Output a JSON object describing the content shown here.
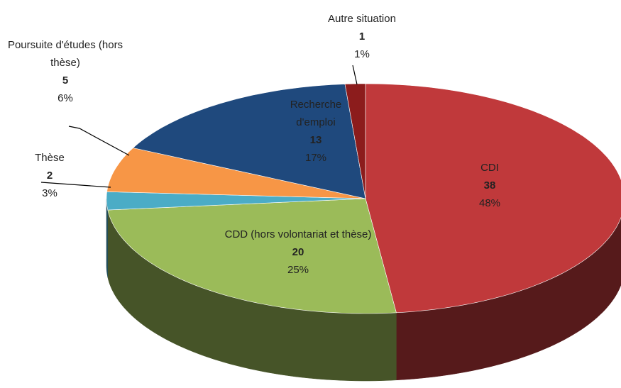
{
  "chart_data": {
    "type": "pie3d",
    "categories": [
      "CDI",
      "CDD (hors volontariat et thèse)",
      "Thèse",
      "Poursuite d'études (hors thèse)",
      "Recherche d'emploi",
      "Autre situation"
    ],
    "values": [
      38,
      20,
      2,
      5,
      13,
      1
    ],
    "percent_labels": [
      "48%",
      "25%",
      "3%",
      "6%",
      "17%",
      "1%"
    ],
    "colors": [
      "#c0393b",
      "#9bbb59",
      "#4bacc6",
      "#f79646",
      "#1f497d",
      "#8c1c1c"
    ],
    "start_angle": 0,
    "direction": "clockwise"
  }
}
